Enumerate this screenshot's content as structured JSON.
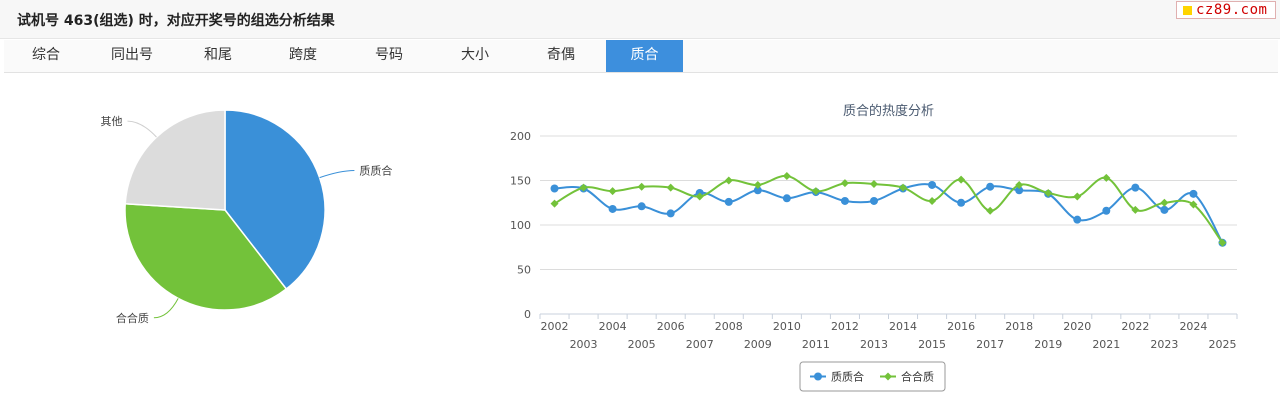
{
  "header": {
    "title": "试机号 463(组选) 时，对应开奖号的组选分析结果"
  },
  "logo": {
    "text": "cz89.com"
  },
  "tabs": [
    {
      "label": "综合"
    },
    {
      "label": "同出号"
    },
    {
      "label": "和尾"
    },
    {
      "label": "跨度"
    },
    {
      "label": "号码"
    },
    {
      "label": "大小"
    },
    {
      "label": "奇偶"
    },
    {
      "label": "质合"
    }
  ],
  "active_tab": 7,
  "colors": {
    "series1": "#3a90d8",
    "series2": "#73c23a",
    "other": "#dcdcdc",
    "tab_active": "#3d8fdd"
  },
  "chart_data": [
    {
      "type": "pie",
      "labels": [
        "质质合",
        "合合质",
        "其他"
      ],
      "values": [
        39.5,
        36.5,
        24
      ],
      "colors": [
        "#3a90d8",
        "#73c23a",
        "#dcdcdc"
      ]
    },
    {
      "type": "line",
      "title": "质合的热度分析",
      "x": [
        2002,
        2003,
        2004,
        2005,
        2006,
        2007,
        2008,
        2009,
        2010,
        2011,
        2012,
        2013,
        2014,
        2015,
        2016,
        2017,
        2018,
        2019,
        2020,
        2021,
        2022,
        2023,
        2024,
        2025
      ],
      "ylim": [
        0,
        200
      ],
      "yticks": [
        0,
        50,
        100,
        150,
        200
      ],
      "grid": true,
      "legend": "bottom",
      "series": [
        {
          "name": "质质合",
          "color": "#3a90d8",
          "marker": "circle",
          "values": [
            141,
            141,
            118,
            121,
            113,
            136,
            126,
            139,
            130,
            137,
            127,
            127,
            141,
            145,
            125,
            143,
            139,
            135,
            106,
            116,
            142,
            117,
            135,
            80
          ]
        },
        {
          "name": "合合质",
          "color": "#73c23a",
          "marker": "diamond",
          "values": [
            124,
            142,
            138,
            143,
            142,
            132,
            150,
            145,
            155,
            138,
            147,
            146,
            142,
            127,
            151,
            116,
            145,
            136,
            132,
            153,
            117,
            125,
            123,
            80
          ]
        }
      ]
    }
  ]
}
